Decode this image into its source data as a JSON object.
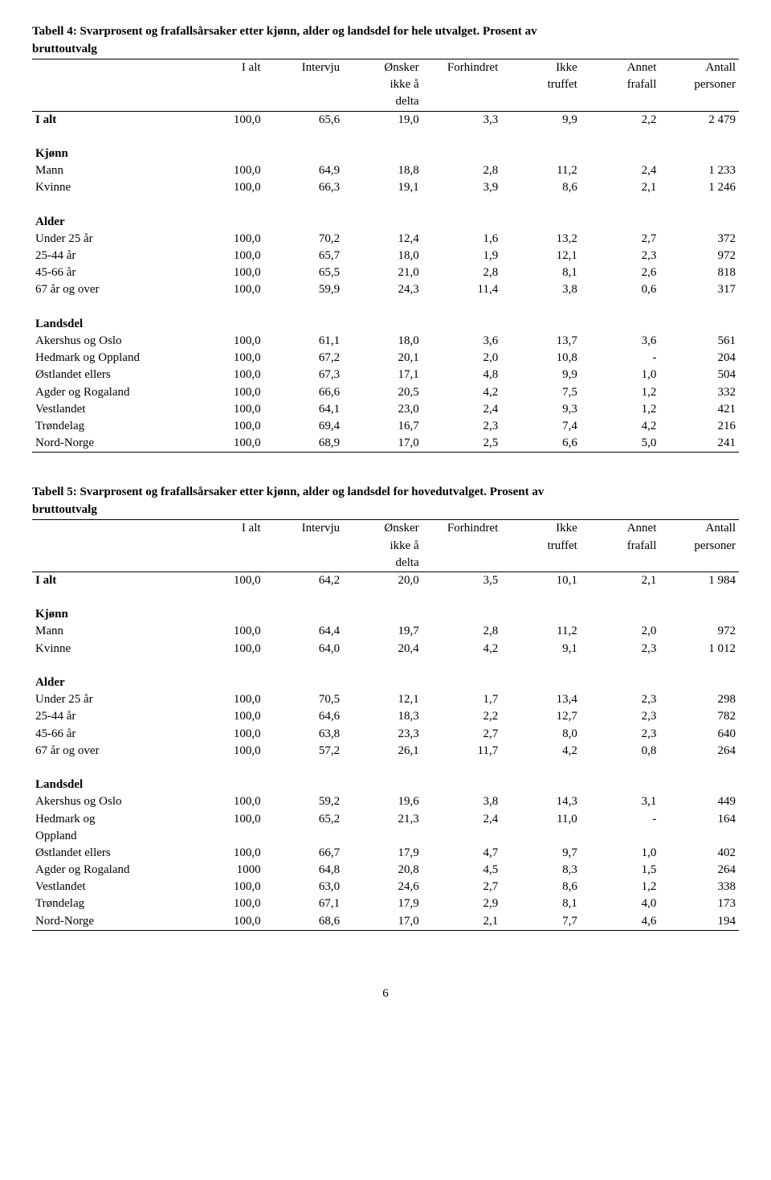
{
  "page_number": "6",
  "table4": {
    "title_line1": "Tabell 4: Svarprosent og frafallsårsaker etter kjønn, alder og landsdel for hele utvalget. Prosent av",
    "title_line2": "bruttoutvalg",
    "headers": {
      "c1": "I alt",
      "c2": "Intervju",
      "c3a": "Ønsker",
      "c3b": "ikke å",
      "c3c": "delta",
      "c4": "Forhindret",
      "c5a": "Ikke",
      "c5b": "truffet",
      "c6a": "Annet",
      "c6b": "frafall",
      "c7a": "Antall",
      "c7b": "personer"
    },
    "ialt_label": "I alt",
    "ialt": [
      "100,0",
      "65,6",
      "19,0",
      "3,3",
      "9,9",
      "2,2",
      "2 479"
    ],
    "sections": [
      {
        "name": "Kjønn",
        "rows": [
          {
            "label": "Mann",
            "v": [
              "100,0",
              "64,9",
              "18,8",
              "2,8",
              "11,2",
              "2,4",
              "1 233"
            ]
          },
          {
            "label": "Kvinne",
            "v": [
              "100,0",
              "66,3",
              "19,1",
              "3,9",
              "8,6",
              "2,1",
              "1 246"
            ]
          }
        ]
      },
      {
        "name": "Alder",
        "rows": [
          {
            "label": "Under 25 år",
            "v": [
              "100,0",
              "70,2",
              "12,4",
              "1,6",
              "13,2",
              "2,7",
              "372"
            ]
          },
          {
            "label": "25-44 år",
            "v": [
              "100,0",
              "65,7",
              "18,0",
              "1,9",
              "12,1",
              "2,3",
              "972"
            ]
          },
          {
            "label": "45-66 år",
            "v": [
              "100,0",
              "65,5",
              "21,0",
              "2,8",
              "8,1",
              "2,6",
              "818"
            ]
          },
          {
            "label": "67 år og over",
            "v": [
              "100,0",
              "59,9",
              "24,3",
              "11,4",
              "3,8",
              "0,6",
              "317"
            ]
          }
        ]
      },
      {
        "name": "Landsdel",
        "rows": [
          {
            "label": "Akershus og Oslo",
            "v": [
              "100,0",
              "61,1",
              "18,0",
              "3,6",
              "13,7",
              "3,6",
              "561"
            ]
          },
          {
            "label": "Hedmark og Oppland",
            "v": [
              "100,0",
              "67,2",
              "20,1",
              "2,0",
              "10,8",
              "-",
              "204"
            ]
          },
          {
            "label": "Østlandet ellers",
            "v": [
              "100,0",
              "67,3",
              "17,1",
              "4,8",
              "9,9",
              "1,0",
              "504"
            ]
          },
          {
            "label": "Agder og Rogaland",
            "v": [
              "100,0",
              "66,6",
              "20,5",
              "4,2",
              "7,5",
              "1,2",
              "332"
            ]
          },
          {
            "label": "Vestlandet",
            "v": [
              "100,0",
              "64,1",
              "23,0",
              "2,4",
              "9,3",
              "1,2",
              "421"
            ]
          },
          {
            "label": "Trøndelag",
            "v": [
              "100,0",
              "69,4",
              "16,7",
              "2,3",
              "7,4",
              "4,2",
              "216"
            ]
          },
          {
            "label": "Nord-Norge",
            "v": [
              "100,0",
              "68,9",
              "17,0",
              "2,5",
              "6,6",
              "5,0",
              "241"
            ]
          }
        ]
      }
    ]
  },
  "table5": {
    "title_line1": "Tabell 5: Svarprosent og frafallsårsaker etter kjønn, alder og landsdel for hovedutvalget. Prosent av",
    "title_line2": "bruttoutvalg",
    "headers": {
      "c1": "I alt",
      "c2": "Intervju",
      "c3a": "Ønsker",
      "c3b": "ikke å",
      "c3c": "delta",
      "c4": "Forhindret",
      "c5a": "Ikke",
      "c5b": "truffet",
      "c6a": "Annet",
      "c6b": "frafall",
      "c7a": "Antall",
      "c7b": "personer"
    },
    "ialt_label": "I alt",
    "ialt": [
      "100,0",
      "64,2",
      "20,0",
      "3,5",
      "10,1",
      "2,1",
      "1 984"
    ],
    "sections": [
      {
        "name": "Kjønn",
        "rows": [
          {
            "label": "Mann",
            "v": [
              "100,0",
              "64,4",
              "19,7",
              "2,8",
              "11,2",
              "2,0",
              "972"
            ]
          },
          {
            "label": "Kvinne",
            "v": [
              "100,0",
              "64,0",
              "20,4",
              "4,2",
              "9,1",
              "2,3",
              "1 012"
            ]
          }
        ]
      },
      {
        "name": "Alder",
        "rows": [
          {
            "label": "Under 25 år",
            "v": [
              "100,0",
              "70,5",
              "12,1",
              "1,7",
              "13,4",
              "2,3",
              "298"
            ]
          },
          {
            "label": "25-44 år",
            "v": [
              "100,0",
              "64,6",
              "18,3",
              "2,2",
              "12,7",
              "2,3",
              "782"
            ]
          },
          {
            "label": "45-66 år",
            "v": [
              "100,0",
              "63,8",
              "23,3",
              "2,7",
              "8,0",
              "2,3",
              "640"
            ]
          },
          {
            "label": "67 år og over",
            "v": [
              "100,0",
              "57,2",
              "26,1",
              "11,7",
              "4,2",
              "0,8",
              "264"
            ]
          }
        ]
      },
      {
        "name": "Landsdel",
        "rows": [
          {
            "label": "Akershus og Oslo",
            "v": [
              "100,0",
              "59,2",
              "19,6",
              "3,8",
              "14,3",
              "3,1",
              "449"
            ]
          },
          {
            "label": "Hedmark og Oppland",
            "v": [
              "100,0",
              "65,2",
              "21,3",
              "2,4",
              "11,0",
              "-",
              "164"
            ],
            "wrap": true
          },
          {
            "label": "Østlandet ellers",
            "v": [
              "100,0",
              "66,7",
              "17,9",
              "4,7",
              "9,7",
              "1,0",
              "402"
            ]
          },
          {
            "label": "Agder og Rogaland",
            "v": [
              "1000",
              "64,8",
              "20,8",
              "4,5",
              "8,3",
              "1,5",
              "264"
            ]
          },
          {
            "label": "Vestlandet",
            "v": [
              "100,0",
              "63,0",
              "24,6",
              "2,7",
              "8,6",
              "1,2",
              "338"
            ]
          },
          {
            "label": "Trøndelag",
            "v": [
              "100,0",
              "67,1",
              "17,9",
              "2,9",
              "8,1",
              "4,0",
              "173"
            ]
          },
          {
            "label": "Nord-Norge",
            "v": [
              "100,0",
              "68,6",
              "17,0",
              "2,1",
              "7,7",
              "4,6",
              "194"
            ]
          }
        ]
      }
    ]
  }
}
